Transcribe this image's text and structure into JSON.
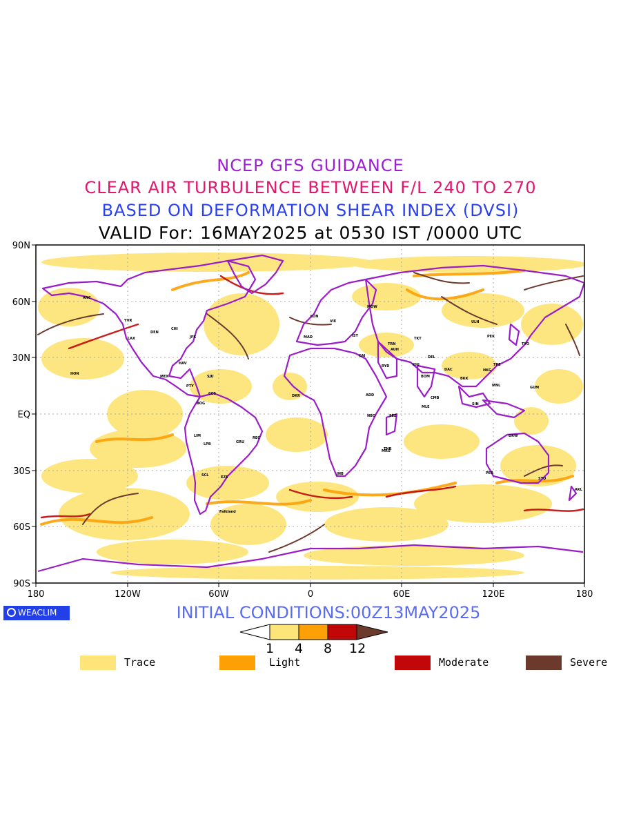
{
  "titles": {
    "line1": "NCEP GFS GUIDANCE",
    "line2": "CLEAR AIR TURBULENCE BETWEEN F/L 240 TO 270",
    "line3": "BASED ON DEFORMATION SHEAR INDEX (DVSI)",
    "line4": "VALID For: 16MAY2025 at 0530 IST /0000 UTC"
  },
  "map": {
    "lat_labels": [
      "90N",
      "60N",
      "30N",
      "EQ",
      "30S",
      "60S",
      "90S"
    ],
    "lon_labels": [
      "180",
      "120W",
      "60W",
      "0",
      "60E",
      "120E",
      "180"
    ],
    "station_labels": [
      "ANC",
      "HON",
      "MEX",
      "LIM",
      "BOG",
      "CCS",
      "MAD",
      "LON",
      "MOW",
      "CAI",
      "RYD",
      "JNB",
      "DKR",
      "KHI",
      "DEL",
      "BOM",
      "MLE",
      "CMB",
      "DAC",
      "BKK",
      "SIN",
      "HKG",
      "TPE",
      "PEK",
      "TYO",
      "ULN",
      "MNL",
      "DRW",
      "PER",
      "SYD",
      "AKL",
      "GUM",
      "NBO",
      "ADD",
      "MRU",
      "TNR",
      "LPB",
      "GRU",
      "EZE",
      "SCL",
      "LAX",
      "JFK",
      "YVR",
      "DEN",
      "CHI",
      "HAV",
      "PTY",
      "REC",
      "SJU",
      "AUH",
      "TKT",
      "SEZ",
      "VIE",
      "IST",
      "TRN",
      "Falkland"
    ]
  },
  "logo": {
    "text": "WEACLIM"
  },
  "initial_conditions": "INITIAL CONDITIONS:00Z13MAY2025",
  "colorbar": {
    "ticks": [
      "1",
      "4",
      "8",
      "12"
    ],
    "colors": [
      "#ffffff",
      "#fde57a",
      "#fca005",
      "#c10707",
      "#6b3a2d"
    ]
  },
  "legend": [
    {
      "label": "Trace",
      "color": "#fde57a"
    },
    {
      "label": "Light",
      "color": "#fca005"
    },
    {
      "label": "Moderate",
      "color": "#c10707"
    },
    {
      "label": "Severe",
      "color": "#6b3a2d"
    }
  ],
  "colors": {
    "coastline": "#9a1cc6",
    "title1": "#9b1fd0",
    "title2": "#e0166f",
    "title3": "#2a3ff0",
    "init": "#5a6cf0"
  }
}
